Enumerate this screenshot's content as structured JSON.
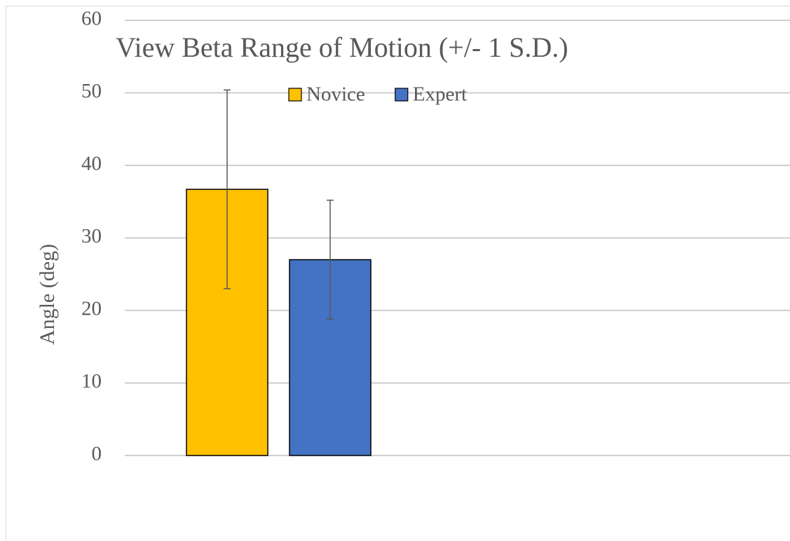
{
  "chart_data": {
    "type": "bar",
    "title": "View Beta Range of Motion (+/- 1 S.D.)",
    "y_label": "Angle (deg)",
    "categories": [
      null
    ],
    "series": [
      {
        "name": "Novice",
        "color": "#ffc000",
        "values": [
          36.7
        ],
        "errors": [
          13.7
        ]
      },
      {
        "name": "Expert",
        "color": "#4472c4",
        "values": [
          27.0
        ],
        "errors": [
          8.2
        ]
      }
    ],
    "ylim": [
      0,
      60
    ],
    "yticks": [
      0,
      10,
      20,
      30,
      40,
      50,
      60
    ],
    "grid": true,
    "legend": "top"
  }
}
